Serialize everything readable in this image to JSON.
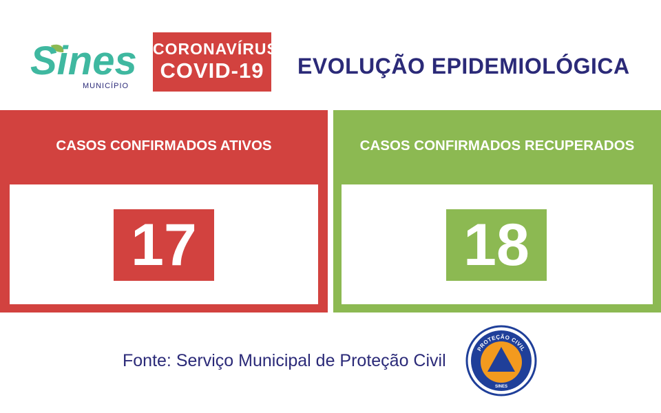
{
  "header": {
    "logo": {
      "name": "Sines",
      "sub": "MUNICÍPIO",
      "icon": "leaf-icon"
    },
    "badge": {
      "line1": "CORONAVÍRUS",
      "line2": "COVID-19"
    },
    "title": "EVOLUÇÃO EPIDEMIOLÓGICA"
  },
  "panels": [
    {
      "label": "CASOS CONFIRMADOS ATIVOS",
      "value": "17",
      "color": "#d2423f"
    },
    {
      "label": "CASOS CONFIRMADOS RECUPERADOS",
      "value": "18",
      "color": "#8cb952"
    }
  ],
  "footer": {
    "source": "Fonte: Serviço Municipal de Proteção Civil",
    "emblem": {
      "top_text": "PROTEÇÃO CIVIL",
      "bottom_text": "SINES",
      "icon": "civil-protection-triangle-icon"
    }
  },
  "colors": {
    "red": "#d2423f",
    "green": "#8cb952",
    "navy": "#2b2a78",
    "teal": "#3fb8a0",
    "orange": "#f39a1e",
    "blue": "#1f3f99"
  }
}
